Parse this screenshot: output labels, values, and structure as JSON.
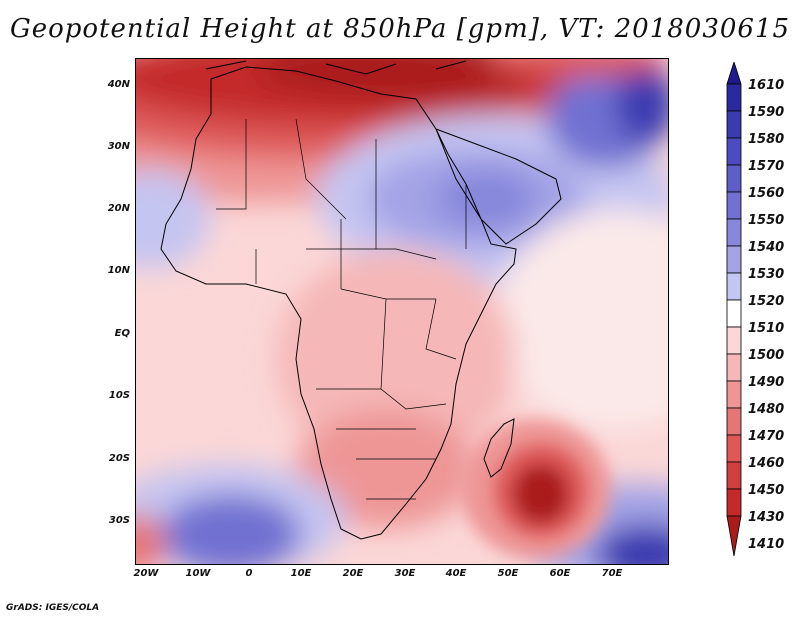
{
  "title": "Geopotential Height at 850hPa [gpm], VT: 2018030615",
  "credit": "GrADS: IGES/COLA",
  "map": {
    "lat_labels": [
      "40N",
      "30N",
      "20N",
      "10N",
      "EQ",
      "10S",
      "20S",
      "30S"
    ],
    "lon_labels": [
      "20W",
      "10W",
      "0",
      "10E",
      "20E",
      "30E",
      "40E",
      "50E",
      "60E",
      "70E"
    ]
  },
  "colorbar": {
    "levels": [
      "1610",
      "1590",
      "1580",
      "1570",
      "1560",
      "1550",
      "1540",
      "1530",
      "1520",
      "1510",
      "1500",
      "1490",
      "1480",
      "1470",
      "1460",
      "1450",
      "1430",
      "1410"
    ],
    "colors": [
      "#1c1a8c",
      "#2a2a9e",
      "#3b3bb0",
      "#4c4cc0",
      "#5e5ec9",
      "#7171d2",
      "#8787dc",
      "#a3a3e6",
      "#c5c5f1",
      "#ffffff",
      "#fbd7d7",
      "#f5b7b7",
      "#ee9696",
      "#e67575",
      "#de5858",
      "#d23f3f",
      "#c42a2a",
      "#aa1c1c"
    ]
  }
}
